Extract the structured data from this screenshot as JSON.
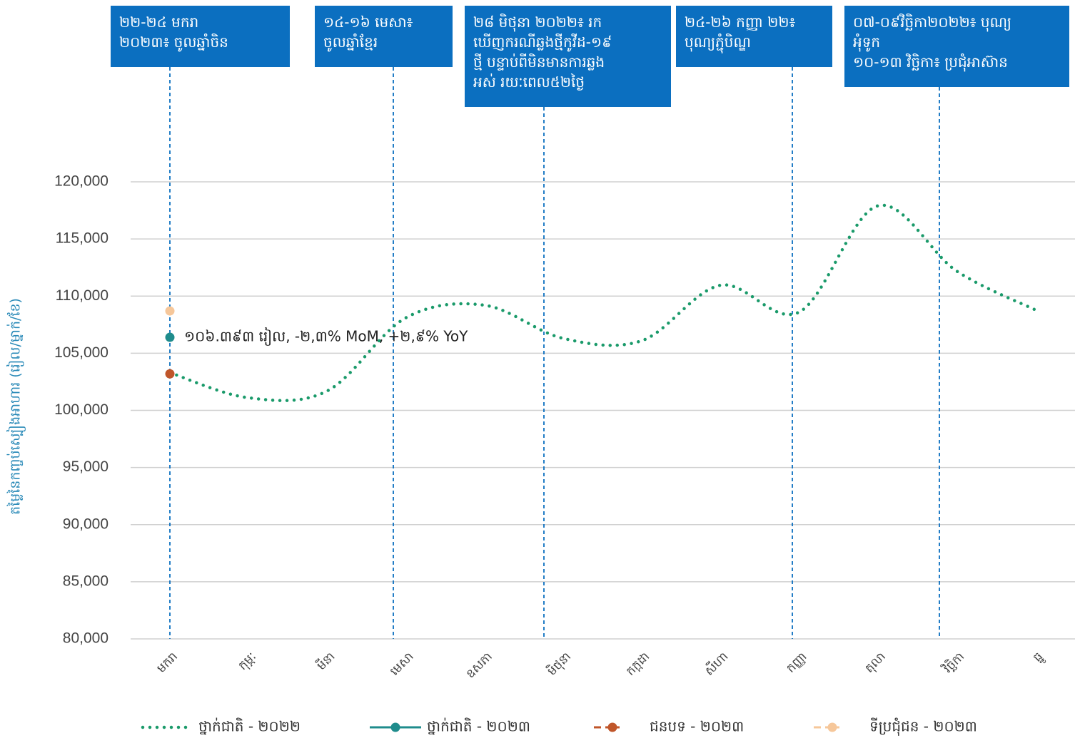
{
  "chart_data": {
    "type": "line",
    "y_label": "តម្លៃនៃកញ្ចប់ស្បៀងអាហារ (រៀល/ម្នាក់/ខែ)",
    "categories": [
      "មករា",
      "កុម្ភៈ",
      "មីនា",
      "មេសា",
      "ឧសភា",
      "មិថុនា",
      "កក្កដា",
      "សីហា",
      "កញ្ញា",
      "តុលា",
      "វិច្ឆិកា",
      "ធ្នូ"
    ],
    "series": [
      {
        "name": "ថ្នាក់ជាតិ - ២០២២",
        "color": "#1a9a6a",
        "style": "dotted",
        "values": [
          103300,
          101100,
          101700,
          108100,
          109200,
          106300,
          106100,
          110950,
          108600,
          117900,
          112200,
          108800
        ]
      },
      {
        "name": "ថ្នាក់ជាតិ - ២០២៣",
        "color": "#1f8c8c",
        "style": "marker",
        "values": [
          106393,
          null,
          null,
          null,
          null,
          null,
          null,
          null,
          null,
          null,
          null,
          null
        ]
      },
      {
        "name": "ជនបទ - ២០២៣",
        "color": "#c0562a",
        "style": "marker",
        "values": [
          103200,
          null,
          null,
          null,
          null,
          null,
          null,
          null,
          null,
          null,
          null,
          null
        ]
      },
      {
        "name": "ទីប្រជុំជន - ២០២៣",
        "color": "#f6c79a",
        "style": "marker",
        "values": [
          108700,
          null,
          null,
          null,
          null,
          null,
          null,
          null,
          null,
          null,
          null,
          null
        ]
      }
    ],
    "point_label": "១០៦.៣៩៣ រៀល, -២,៣% MoM, +២,៩% YoY",
    "annotations": [
      {
        "lines": [
          "២២-២៤ មករា",
          "២០២៣៖ ចូលឆ្នាំចិន"
        ]
      },
      {
        "lines": [
          "១៤-១៦ មេសា៖",
          "ចូលឆ្នាំខ្មែរ"
        ]
      },
      {
        "lines": [
          "២៨ មិថុនា ២០២២៖ រក",
          "ឃើញករណីឆ្លងថ្មីកូវីដ-១៩",
          "ថ្មី បន្ទាប់ពីមិនមានការឆ្លង",
          "អស់ រយៈពេល៥២ថ្ងៃ"
        ]
      },
      {
        "lines": [
          "២៤-២៦ កញ្ញា ២២៖",
          "បុណ្យភ្ជុំបិណ្ឌ"
        ]
      },
      {
        "lines": [
          "០៧-០៩វិច្ឆិកា២០២២៖ បុណ្យ",
          "អុំទូក",
          "១០-១៣ វិច្ឆិកា៖ ប្រជុំអាស៊ាន"
        ]
      }
    ],
    "annotation_color": "#0b6fc0",
    "ylim": [
      80000,
      120000
    ],
    "yticks": [
      {
        "value": 80000,
        "label": "80,000"
      },
      {
        "value": 85000,
        "label": "85,000"
      },
      {
        "value": 90000,
        "label": "90,000"
      },
      {
        "value": 95000,
        "label": "95,000"
      },
      {
        "value": 100000,
        "label": "100,000"
      },
      {
        "value": 105000,
        "label": "105,000"
      },
      {
        "value": 110000,
        "label": "110,000"
      },
      {
        "value": 115000,
        "label": "115,000"
      },
      {
        "value": 120000,
        "label": "120,000"
      }
    ],
    "grid": true
  }
}
